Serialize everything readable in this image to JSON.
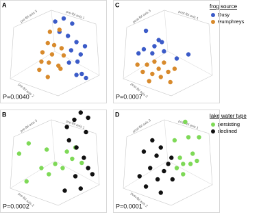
{
  "chart_data": [
    {
      "type": "scatter",
      "panel": "A",
      "p_value": "P=0.0040",
      "legend_title": "frog source",
      "axis_labels": [
        "pre-fbl axis 1",
        "pre-fbl axis 2",
        "pre-fbl axis 3"
      ],
      "xlim": [
        0,
        100
      ],
      "ylim": [
        0,
        100
      ],
      "series": [
        {
          "name": "Dusy",
          "color": "#3b5bc8",
          "x": [
            52,
            60,
            68,
            56,
            64,
            72,
            67,
            80,
            76,
            73,
            65,
            77,
            81,
            72
          ],
          "y": [
            79,
            82,
            77,
            69,
            65,
            59,
            51,
            55,
            47,
            40,
            39,
            28,
            24,
            27
          ]
        },
        {
          "name": "Humphreys",
          "color": "#d88a2c",
          "x": [
            47,
            56,
            45,
            51,
            58,
            40,
            49,
            60,
            39,
            46,
            37,
            57,
            45,
            55
          ],
          "y": [
            69,
            71,
            58,
            56,
            53,
            49,
            47,
            46,
            40,
            39,
            32,
            33,
            25,
            36
          ]
        }
      ]
    },
    {
      "type": "scatter",
      "panel": "B",
      "p_value": "P=0.0002",
      "legend_title": "lake water type",
      "axis_labels": [
        "pre-fbl axis 1",
        "pre-fbl axis 2",
        "pre-fbl axis 3"
      ],
      "xlim": [
        0,
        100
      ],
      "ylim": [
        0,
        100
      ],
      "series": [
        {
          "name": "persisting",
          "color": "#7ed957",
          "x": [
            18,
            27,
            44,
            52,
            59,
            63,
            71,
            39,
            46,
            25,
            77,
            68
          ],
          "y": [
            57,
            67,
            61,
            47,
            43,
            59,
            63,
            43,
            37,
            30,
            48,
            52
          ]
        },
        {
          "name": "declined",
          "color": "#111111",
          "x": [
            76,
            70,
            83,
            63,
            81,
            65,
            72,
            79,
            83,
            71,
            76,
            87,
            61
          ],
          "y": [
            97,
            90,
            92,
            83,
            78,
            70,
            63,
            53,
            43,
            35,
            23,
            37,
            21
          ]
        }
      ]
    },
    {
      "type": "scatter",
      "panel": "C",
      "p_value": "P=0.0007",
      "axis_labels": [
        "post-fbl axis 1",
        "post-fbl axis 2",
        "post-fbl axis 3"
      ],
      "xlim": [
        0,
        100
      ],
      "ylim": [
        0,
        100
      ],
      "series": [
        {
          "color": "#3b5bc8",
          "x": [
            31,
            43,
            39,
            29,
            48,
            37,
            46,
            24,
            60,
            71
          ],
          "y": [
            70,
            61,
            55,
            52,
            50,
            48,
            59,
            48,
            43,
            47
          ]
        },
        {
          "color": "#d88a2c",
          "x": [
            39,
            32,
            48,
            43,
            28,
            37,
            52,
            45,
            58,
            34,
            54,
            23
          ],
          "y": [
            40,
            37,
            39,
            33,
            30,
            28,
            30,
            25,
            33,
            21,
            20,
            37
          ]
        }
      ]
    },
    {
      "type": "scatter",
      "panel": "D",
      "p_value": "P=0.0001",
      "axis_labels": [
        "post-fbl axis 1",
        "post-fbl axis 2",
        "post-fbl axis 3"
      ],
      "xlim": [
        0,
        100
      ],
      "ylim": [
        0,
        100
      ],
      "series": [
        {
          "color": "#111111",
          "x": [
            37,
            45,
            29,
            41,
            55,
            35,
            48,
            42,
            56,
            31,
            45,
            52,
            25
          ],
          "y": [
            70,
            63,
            59,
            55,
            53,
            43,
            40,
            32,
            32,
            25,
            19,
            47,
            35
          ]
        },
        {
          "color": "#7ed957",
          "x": [
            68,
            58,
            71,
            81,
            63,
            66,
            73,
            79,
            66,
            75,
            60
          ],
          "y": [
            88,
            70,
            73,
            73,
            53,
            47,
            47,
            50,
            37,
            57,
            43
          ]
        }
      ]
    }
  ]
}
